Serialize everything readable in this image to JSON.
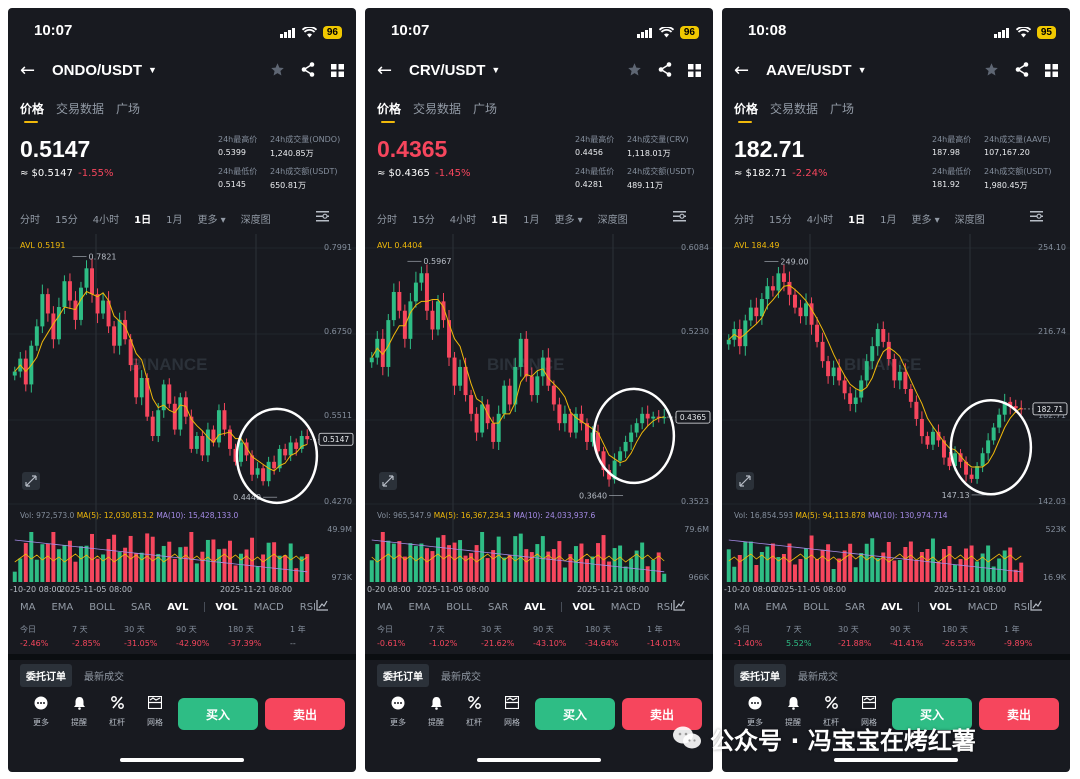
{
  "phones": [
    {
      "status": {
        "time": "10:07",
        "battery": "96"
      },
      "pair": "ONDO/USDT",
      "tabs": [
        "价格",
        "交易数据",
        "广场"
      ],
      "price": "0.5147",
      "price_color": "#ffffff",
      "approx": "≈ $0.5147",
      "change": "-1.55%",
      "stats": {
        "high_label": "24h最高价",
        "high": "0.5399",
        "low_label": "24h最低价",
        "low": "0.5145",
        "vol_base_label": "24h成交量(ONDO)",
        "vol_base": "1,240.85万",
        "vol_quote_label": "24h成交额(USDT)",
        "vol_quote": "650.81万"
      },
      "intervals": [
        "分时",
        "15分",
        "4小时",
        "1日",
        "1月",
        "更多 ▾",
        "深度图"
      ],
      "chart": {
        "avl": "AVL 0.5191",
        "y_ticks": [
          "0.7991",
          "0.6750",
          "0.5511",
          "0.4270"
        ],
        "price_tag": "0.5147",
        "high_label": "0.7821",
        "low_label": "0.4440",
        "vol_line": "Vol: 972,573.0",
        "ma5": "MA(5): 12,030,813.2",
        "ma10": "MA(10): 15,428,133.0",
        "vol_ticks": [
          "49.9M",
          "973K"
        ],
        "dates": [
          "-10-20 08:00",
          "2025-11-05 08:00",
          "2025-11-21 08:00"
        ],
        "closes": [
          0.62,
          0.64,
          0.6,
          0.66,
          0.69,
          0.74,
          0.71,
          0.67,
          0.72,
          0.76,
          0.73,
          0.7,
          0.75,
          0.78,
          0.74,
          0.71,
          0.73,
          0.69,
          0.66,
          0.7,
          0.67,
          0.63,
          0.58,
          0.61,
          0.55,
          0.52,
          0.56,
          0.6,
          0.57,
          0.53,
          0.58,
          0.55,
          0.5,
          0.52,
          0.49,
          0.53,
          0.51,
          0.56,
          0.53,
          0.5,
          0.48,
          0.51,
          0.49,
          0.46,
          0.47,
          0.45,
          0.48,
          0.47,
          0.5,
          0.49,
          0.51,
          0.5,
          0.52,
          0.515
        ],
        "range": [
          0.427,
          0.7991
        ]
      },
      "perf": [
        {
          "label": "今日",
          "value": "-2.46%",
          "sign": "neg"
        },
        {
          "label": "7 天",
          "value": "-2.85%",
          "sign": "neg"
        },
        {
          "label": "30 天",
          "value": "-31.05%",
          "sign": "neg"
        },
        {
          "label": "90 天",
          "value": "-42.90%",
          "sign": "neg"
        },
        {
          "label": "180 天",
          "value": "-37.39%",
          "sign": "neg"
        },
        {
          "label": "1 年",
          "value": "--",
          "sign": "neu"
        }
      ]
    },
    {
      "status": {
        "time": "10:07",
        "battery": "96"
      },
      "pair": "CRV/USDT",
      "tabs": [
        "价格",
        "交易数据",
        "广场"
      ],
      "price": "0.4365",
      "price_color": "#f6465d",
      "approx": "≈ $0.4365",
      "change": "-1.45%",
      "stats": {
        "high_label": "24h最高价",
        "high": "0.4456",
        "low_label": "24h最低价",
        "low": "0.4281",
        "vol_base_label": "24h成交量(CRV)",
        "vol_base": "1,118.01万",
        "vol_quote_label": "24h成交额(USDT)",
        "vol_quote": "489.11万"
      },
      "intervals": [
        "分时",
        "15分",
        "4小时",
        "1日",
        "1月",
        "更多 ▾",
        "深度图"
      ],
      "chart": {
        "avl": "AVL 0.4404",
        "y_ticks": [
          "0.6084",
          "0.5230",
          "0.4365",
          "0.3523"
        ],
        "price_tag": "0.4365",
        "high_label": "0.5967",
        "low_label": "0.3640",
        "vol_line": "Vol: 965,547.9",
        "ma5": "MA(5): 16,367,234.3",
        "ma10": "MA(10): 24,033,937.6",
        "vol_ticks": [
          "79.6M",
          "966K"
        ],
        "dates": [
          "0-20 08:00",
          "2025-11-05 08:00",
          "2025-11-21 08:00"
        ],
        "closes": [
          0.5,
          0.52,
          0.49,
          0.54,
          0.57,
          0.55,
          0.52,
          0.56,
          0.58,
          0.59,
          0.55,
          0.53,
          0.56,
          0.54,
          0.5,
          0.47,
          0.49,
          0.46,
          0.44,
          0.42,
          0.45,
          0.43,
          0.41,
          0.44,
          0.47,
          0.45,
          0.49,
          0.52,
          0.48,
          0.46,
          0.48,
          0.5,
          0.47,
          0.45,
          0.43,
          0.44,
          0.42,
          0.44,
          0.43,
          0.41,
          0.42,
          0.4,
          0.38,
          0.37,
          0.39,
          0.4,
          0.41,
          0.42,
          0.43,
          0.44,
          0.435,
          0.437,
          0.436,
          0.4365
        ],
        "range": [
          0.3523,
          0.6084
        ]
      },
      "perf": [
        {
          "label": "今日",
          "value": "-0.61%",
          "sign": "neg"
        },
        {
          "label": "7 天",
          "value": "-1.02%",
          "sign": "neg"
        },
        {
          "label": "30 天",
          "value": "-21.62%",
          "sign": "neg"
        },
        {
          "label": "90 天",
          "value": "-43.10%",
          "sign": "neg"
        },
        {
          "label": "180 天",
          "value": "-34.64%",
          "sign": "neg"
        },
        {
          "label": "1 年",
          "value": "-14.01%",
          "sign": "neg"
        }
      ]
    },
    {
      "status": {
        "time": "10:08",
        "battery": "95"
      },
      "pair": "AAVE/USDT",
      "tabs": [
        "价格",
        "交易数据",
        "广场"
      ],
      "price": "182.71",
      "price_color": "#ffffff",
      "approx": "≈ $182.71",
      "change": "-2.24%",
      "stats": {
        "high_label": "24h最高价",
        "high": "187.98",
        "low_label": "24h最低价",
        "low": "181.92",
        "vol_base_label": "24h成交量(AAVE)",
        "vol_base": "107,167.20",
        "vol_quote_label": "24h成交额(USDT)",
        "vol_quote": "1,980.45万"
      },
      "intervals": [
        "分时",
        "15分",
        "4小时",
        "1日",
        "1月",
        "更多 ▾",
        "深度图"
      ],
      "chart": {
        "avl": "AVL 184.49",
        "y_ticks": [
          "254.10",
          "216.74",
          "182.71",
          "142.03"
        ],
        "price_tag": "182.71",
        "high_label": "249.00",
        "low_label": "147.13",
        "vol_line": "Vol: 16,854.593",
        "ma5": "MA(5): 94,113.878",
        "ma10": "MA(10): 130,974.714",
        "vol_ticks": [
          "523K",
          "16.9K"
        ],
        "dates": [
          "-10-20 08:00",
          "2025-11-05 08:00",
          "2025-11-21 08:00"
        ],
        "closes": [
          215,
          220,
          212,
          224,
          230,
          226,
          234,
          240,
          238,
          246,
          242,
          236,
          230,
          226,
          232,
          222,
          214,
          205,
          198,
          202,
          196,
          190,
          185,
          188,
          196,
          205,
          212,
          220,
          214,
          206,
          196,
          200,
          192,
          186,
          178,
          170,
          166,
          172,
          168,
          160,
          156,
          162,
          158,
          152,
          150,
          156,
          162,
          168,
          174,
          180,
          186,
          184,
          183,
          182.7
        ],
        "range": [
          142.03,
          254.1
        ]
      },
      "perf": [
        {
          "label": "今日",
          "value": "-1.40%",
          "sign": "neg"
        },
        {
          "label": "7 天",
          "value": "5.52%",
          "sign": "pos"
        },
        {
          "label": "30 天",
          "value": "-21.88%",
          "sign": "neg"
        },
        {
          "label": "90 天",
          "value": "-41.41%",
          "sign": "neg"
        },
        {
          "label": "180 天",
          "value": "-26.53%",
          "sign": "neg"
        },
        {
          "label": "1 年",
          "value": "-9.89%",
          "sign": "neg"
        }
      ]
    }
  ],
  "indicators": [
    "MA",
    "EMA",
    "BOLL",
    "SAR",
    "AVL",
    "VOL",
    "MACD",
    "RSI"
  ],
  "order_tabs": [
    "委托订单",
    "最新成交"
  ],
  "actions": [
    {
      "label": "更多",
      "icon": "more-icon"
    },
    {
      "label": "提醒",
      "icon": "bell-icon"
    },
    {
      "label": "杠杆",
      "icon": "percent-icon"
    },
    {
      "label": "网格",
      "icon": "grid-icon"
    }
  ],
  "buy_label": "买入",
  "sell_label": "卖出",
  "chart_watermark": "BINANCE",
  "watermark": "公众号 · 冯宝宝在烤红薯",
  "colors": {
    "up": "#2ebd85",
    "down": "#f6465d",
    "accent": "#f0b90b",
    "bg": "#181a20"
  }
}
